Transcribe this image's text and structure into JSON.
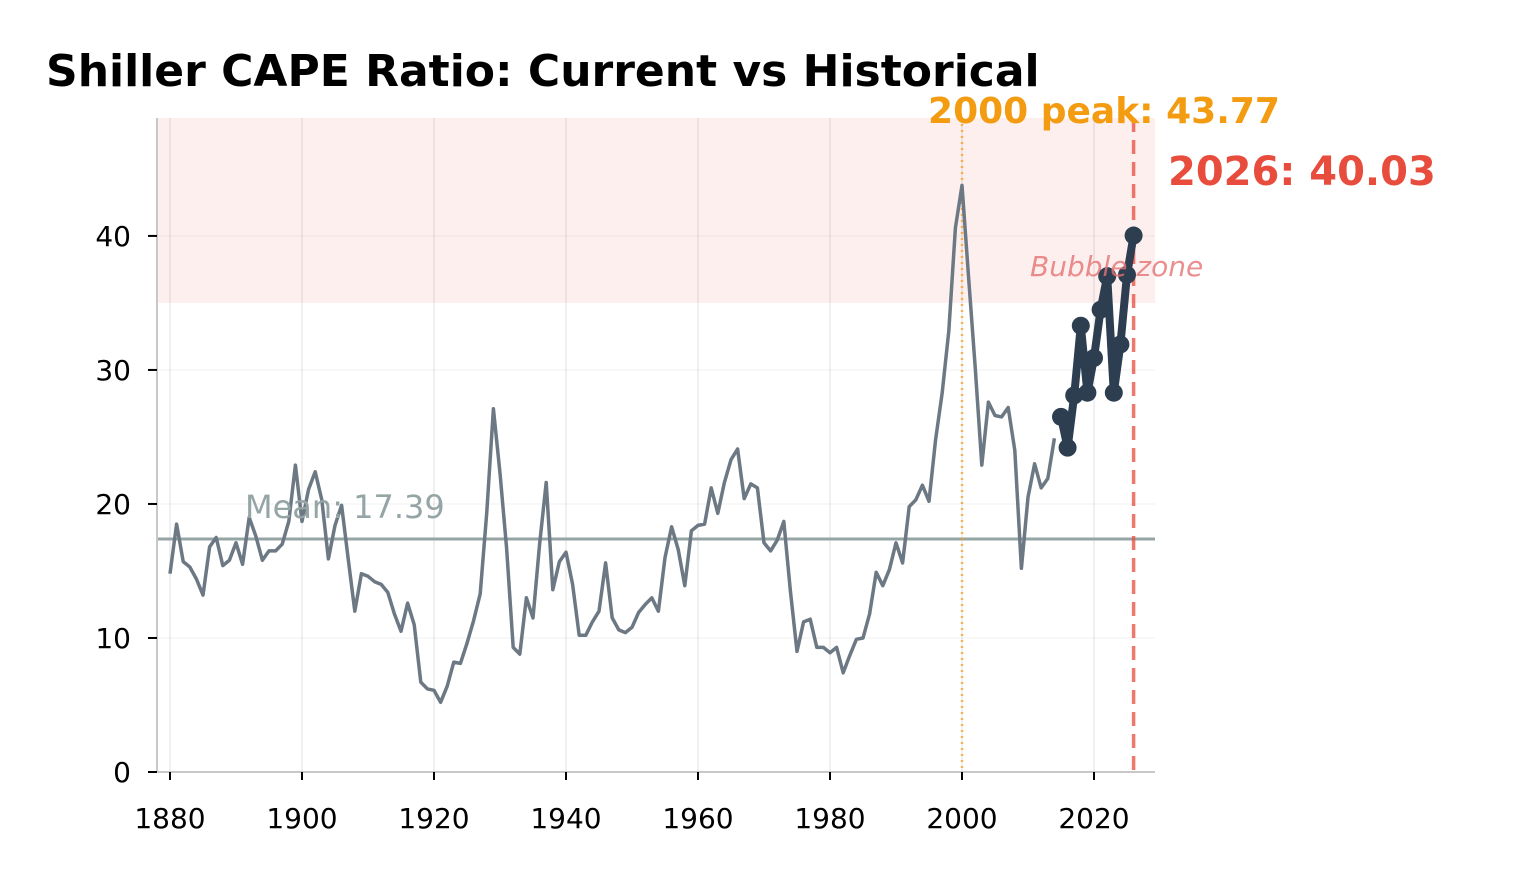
{
  "chart_data": {
    "type": "line",
    "title": "Shiller CAPE Ratio: Current vs Historical",
    "xlabel": "",
    "ylabel": "",
    "xlim": [
      1878,
      2029
    ],
    "ylim": [
      0,
      48.8
    ],
    "x_ticks": [
      "1880",
      "1900",
      "1920",
      "1940",
      "1960",
      "1980",
      "2000",
      "2020"
    ],
    "y_ticks": [
      "0",
      "10",
      "20",
      "30",
      "40"
    ],
    "grid": true,
    "series": [
      {
        "color": "#6c7883",
        "x": [
          1880,
          1881,
          1882,
          1883,
          1884,
          1885,
          1886,
          1887,
          1888,
          1889,
          1890,
          1891,
          1892,
          1893,
          1894,
          1895,
          1896,
          1897,
          1898,
          1899,
          1900,
          1901,
          1902,
          1903,
          1904,
          1905,
          1906,
          1907,
          1908,
          1909,
          1910,
          1911,
          1912,
          1913,
          1914,
          1915,
          1916,
          1917,
          1918,
          1919,
          1920,
          1921,
          1922,
          1923,
          1924,
          1925,
          1926,
          1927,
          1928,
          1929,
          1930,
          1931,
          1932,
          1933,
          1934,
          1935,
          1936,
          1937,
          1938,
          1939,
          1940,
          1941,
          1942,
          1943,
          1944,
          1945,
          1946,
          1947,
          1948,
          1949,
          1950,
          1951,
          1952,
          1953,
          1954,
          1955,
          1956,
          1957,
          1958,
          1959,
          1960,
          1961,
          1962,
          1963,
          1964,
          1965,
          1966,
          1967,
          1968,
          1969,
          1970,
          1971,
          1972,
          1973,
          1974,
          1975,
          1976,
          1977,
          1978,
          1979,
          1980,
          1981,
          1982,
          1983,
          1984,
          1985,
          1986,
          1987,
          1988,
          1989,
          1990,
          1991,
          1992,
          1993,
          1994,
          1995,
          1996,
          1997,
          1998,
          1999,
          2000,
          2001,
          2002,
          2003,
          2004,
          2005,
          2006,
          2007,
          2008,
          2009,
          2010,
          2011,
          2012,
          2013,
          2014
        ],
        "values": [
          14.8,
          18.5,
          15.7,
          15.3,
          14.4,
          13.2,
          16.8,
          17.5,
          15.4,
          15.8,
          17.1,
          15.5,
          19.0,
          17.6,
          15.8,
          16.5,
          16.5,
          17.0,
          18.7,
          22.9,
          18.7,
          21.1,
          22.4,
          20.3,
          15.9,
          18.4,
          19.9,
          15.9,
          12.0,
          14.8,
          14.6,
          14.2,
          14.0,
          13.4,
          11.8,
          10.5,
          12.6,
          11.0,
          6.7,
          6.2,
          6.1,
          5.2,
          6.4,
          8.2,
          8.1,
          9.6,
          11.3,
          13.3,
          19.4,
          27.1,
          22.3,
          16.7,
          9.3,
          8.8,
          13.0,
          11.5,
          17.0,
          21.6,
          13.6,
          15.7,
          16.4,
          14.0,
          10.2,
          10.2,
          11.2,
          12.0,
          15.6,
          11.5,
          10.6,
          10.4,
          10.8,
          11.9,
          12.5,
          13.0,
          12.0,
          16.0,
          18.3,
          16.6,
          13.9,
          18.0,
          18.4,
          18.5,
          21.2,
          19.3,
          21.6,
          23.3,
          24.1,
          20.4,
          21.5,
          21.2,
          17.1,
          16.5,
          17.3,
          18.7,
          13.5,
          9.0,
          11.2,
          11.4,
          9.3,
          9.3,
          8.9,
          9.3,
          7.4,
          8.7,
          9.9,
          10.0,
          11.8,
          14.9,
          13.9,
          15.1,
          17.1,
          15.6,
          19.8,
          20.3,
          21.4,
          20.2,
          24.8,
          28.3,
          32.9,
          40.6,
          43.77,
          36.9,
          30.2,
          22.9,
          27.6,
          26.6,
          26.5,
          27.2,
          24.0,
          15.2,
          20.5,
          23.0,
          21.2,
          21.9,
          24.9
        ]
      },
      {
        "color": "#2c3e50",
        "x": [
          2015,
          2016,
          2017,
          2018,
          2019,
          2020,
          2021,
          2022,
          2023,
          2024,
          2025,
          2026
        ],
        "values": [
          26.5,
          24.2,
          28.1,
          33.3,
          28.3,
          30.9,
          34.5,
          37.0,
          28.3,
          31.9,
          37.1,
          40.03
        ]
      }
    ],
    "mean_line": {
      "value": 17.39,
      "label": "Mean: 17.39",
      "color": "#95a5a6"
    },
    "bubble_zone": {
      "from": 35,
      "to": 48.8,
      "label": "Bubble zone",
      "fill": "#fdeaea",
      "label_color": "#e57373"
    },
    "peak_marker": {
      "x": 2000,
      "label": "2000 peak: 43.77",
      "color": "#f39c12"
    },
    "current_marker": {
      "x": 2026,
      "label": "2026: 40.03",
      "color": "#e74c3c"
    }
  }
}
